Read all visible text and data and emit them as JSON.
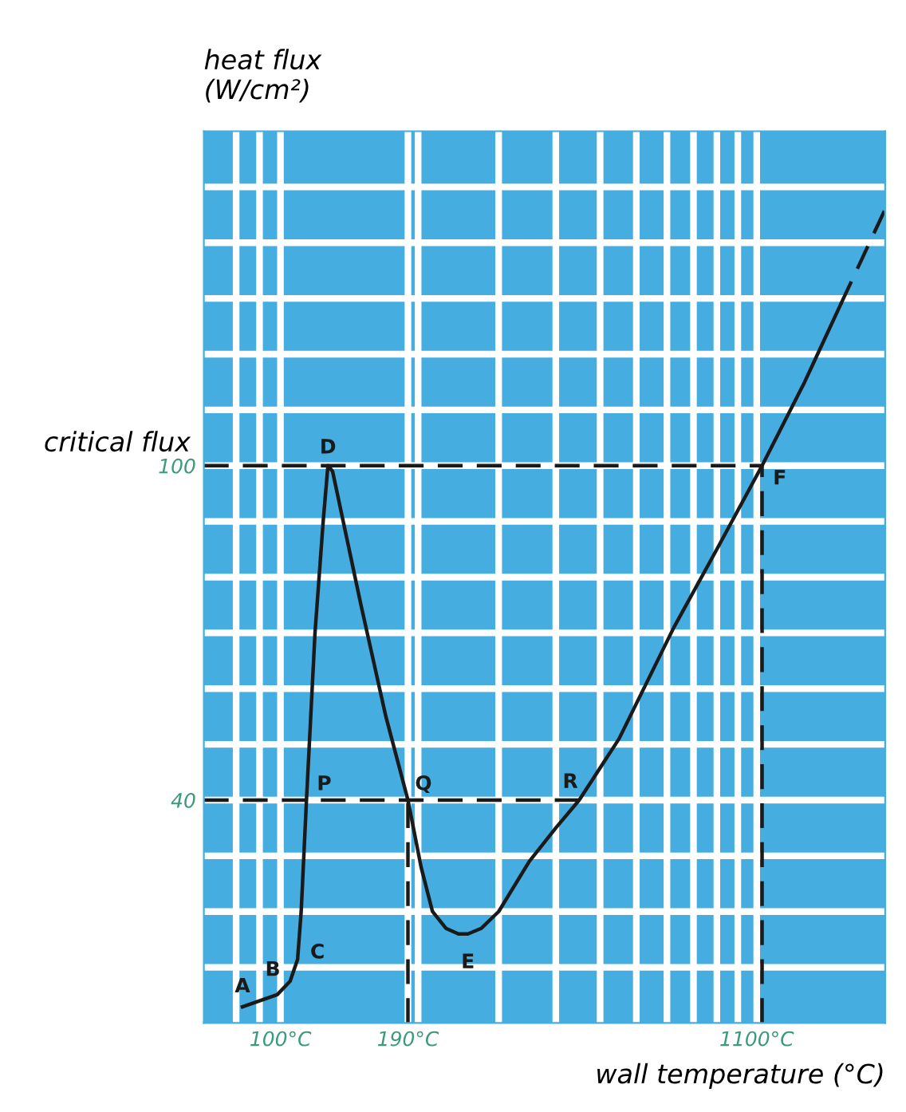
{
  "chart_data": {
    "type": "line",
    "ylabel": "heat flux\n(W/cm²)",
    "xlabel": "wall temperature (°C)",
    "log": "x",
    "grid": true,
    "marker": "none",
    "xlim": [
      68,
      2100
    ],
    "ylim": [
      0,
      160
    ],
    "xticks": [
      {
        "value": 80,
        "label": null
      },
      {
        "value": 90,
        "label": null
      },
      {
        "value": 100,
        "label": "100°C"
      },
      {
        "value": 190,
        "label": "190°C"
      },
      {
        "value": 200,
        "label": null
      },
      {
        "value": 300,
        "label": null
      },
      {
        "value": 400,
        "label": null
      },
      {
        "value": 500,
        "label": null
      },
      {
        "value": 600,
        "label": null
      },
      {
        "value": 700,
        "label": null
      },
      {
        "value": 800,
        "label": null
      },
      {
        "value": 900,
        "label": null
      },
      {
        "value": 1000,
        "label": null
      },
      {
        "value": 1100,
        "label": "1100°C"
      }
    ],
    "yticks": [
      {
        "value": 10,
        "label": null
      },
      {
        "value": 20,
        "label": null
      },
      {
        "value": 30,
        "label": null
      },
      40,
      {
        "value": 50,
        "label": null
      },
      {
        "value": 60,
        "label": null
      },
      {
        "value": 70,
        "label": null
      },
      {
        "value": 80,
        "label": null
      },
      {
        "value": 90,
        "label": null
      },
      100,
      {
        "value": 110,
        "label": null
      },
      {
        "value": 120,
        "label": null
      },
      {
        "value": 130,
        "label": null
      },
      {
        "value": 140,
        "label": null
      },
      {
        "value": 150,
        "label": null
      }
    ],
    "series": [
      {
        "color": "#1a1a1a",
        "line_style": "solid",
        "x": [
          82.6,
          98.4,
          105,
          109,
          111,
          114,
          119,
          124,
          127,
          130,
          150,
          170,
          190,
          203,
          215,
          230,
          245,
          257,
          275,
          300,
          350,
          400,
          450,
          550,
          725,
          900,
          1130,
          1400,
          1680
        ],
        "values": [
          2.9,
          5.1,
          7.5,
          11.4,
          20,
          40,
          70,
          90,
          100,
          99,
          75,
          55,
          40,
          28,
          20,
          17,
          16,
          16,
          17,
          20,
          29,
          35,
          40,
          51,
          71,
          85,
          100,
          115,
          129
        ]
      },
      {
        "color": "#1a1a1a",
        "line_style": "dashed",
        "x": [
          1680,
          2100
        ],
        "values": [
          129,
          146
        ]
      },
      {
        "color": "#1a1a1a",
        "line_style": "dashed",
        "x": [
          68,
          1130
        ],
        "values": [
          100,
          100
        ]
      },
      {
        "color": "#1a1a1a",
        "line_style": "dashed",
        "x": [
          68,
          450
        ],
        "values": [
          40,
          40
        ]
      },
      {
        "color": "#1a1a1a",
        "line_style": "dashed",
        "x": [
          190,
          190
        ],
        "values": [
          0,
          40
        ]
      },
      {
        "color": "#1a1a1a",
        "line_style": "dashed",
        "x": [
          1130,
          1130
        ],
        "values": [
          0,
          100
        ]
      }
    ],
    "annotations": [
      {
        "text": "A",
        "x": 82.6,
        "y": 2.9
      },
      {
        "text": "B",
        "x": 98.4,
        "y": 5.1
      },
      {
        "text": "C",
        "x": 109,
        "y": 11.4
      },
      {
        "text": "D",
        "x": 127,
        "y": 100
      },
      {
        "text": "E",
        "x": 257,
        "y": 16
      },
      {
        "text": "F",
        "x": 1130,
        "y": 100
      },
      {
        "text": "P",
        "x": 114,
        "y": 40
      },
      {
        "text": "Q",
        "x": 190,
        "y": 40
      },
      {
        "text": "R",
        "x": 450,
        "y": 40
      },
      {
        "text": "critical flux",
        "x": 68,
        "y": 100
      }
    ]
  }
}
